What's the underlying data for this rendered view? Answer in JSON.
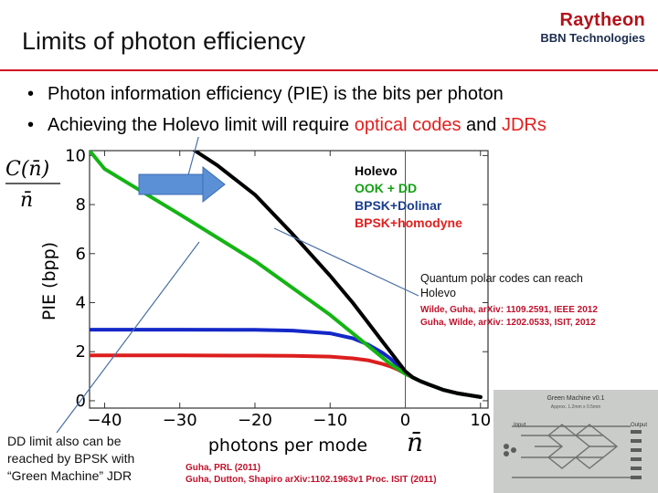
{
  "slide": {
    "title": "Limits of photon efficiency",
    "logo_brand": "Raytheon",
    "logo_sub": "BBN Technologies",
    "bullets": [
      {
        "text_before": "Photon information efficiency (PIE) is the bits per photon",
        "highlight": "",
        "text_mid": "",
        "highlight2": ""
      },
      {
        "text_before": "Achieving the Holevo limit will require ",
        "highlight": "optical codes",
        "text_mid": " and ",
        "highlight2": "JDRs"
      }
    ]
  },
  "legend": {
    "holevo": "Holevo",
    "ook_dd": "OOK + DD",
    "bpsk_dolinar": "BPSK+Dolinar",
    "bpsk_homodyne": "BPSK+homodyne"
  },
  "annotations": {
    "qpc_line1": "Quantum polar codes can reach",
    "qpc_line2": "Holevo",
    "qpc_ref1": "Wilde, Guha, arXiv: 1109.2591, IEEE 2012",
    "qpc_ref2": "Guha, Wilde, arXiv: 1202.0533, ISIT, 2012",
    "dd_line1": "DD limit also can be",
    "dd_line2": "reached by BPSK with",
    "dd_line3": "“Green Machine” JDR",
    "bottom_ref1": "Guha, PRL (2011)",
    "bottom_ref2": "Guha, Dutton, Shapiro arXiv:1102.1963v1  Proc. ISIT (2011)"
  },
  "chip": {
    "title": "Green Machine v0.1",
    "subtitle": "Approx. 1.2mm x 0.5mm",
    "input": "Input",
    "output": "Output"
  },
  "colors": {
    "holevo": "#000000",
    "ook_dd": "#14b414",
    "bpsk_dolinar": "#1428c8",
    "bpsk_homodyne": "#dc1e1e",
    "accent_red": "#d10f1f",
    "arrow_blue": "#5b8fd6"
  },
  "chart_data": {
    "type": "line",
    "title": "",
    "ylabel_math": "C(n̄) / n̄",
    "ylabel": "PIE (bpp)",
    "xlabel": "photons per mode",
    "xlabel_math": "n̄",
    "xlim": [
      -42,
      11
    ],
    "ylim": [
      -0.3,
      10.2
    ],
    "x_ticks": [
      -40,
      -30,
      -20,
      -10,
      0,
      10
    ],
    "x_tick_labels": [
      "−40",
      "−30",
      "−20",
      "−10",
      "0",
      "10"
    ],
    "y_ticks": [
      0,
      2,
      4,
      6,
      8,
      10
    ],
    "y_tick_labels": [
      "0",
      "2",
      "4",
      "6",
      "8",
      "10"
    ],
    "vline_x": 0,
    "grid": false,
    "series": [
      {
        "name": "BPSK+homodyne",
        "color": "#dc1e1e",
        "x": [
          -42,
          -30,
          -20,
          -15,
          -10,
          -7,
          -5,
          -3,
          -2,
          -1,
          0,
          1,
          2,
          3,
          5,
          7,
          10
        ],
        "y": [
          1.85,
          1.85,
          1.84,
          1.83,
          1.8,
          1.73,
          1.65,
          1.5,
          1.4,
          1.27,
          1.1,
          0.95,
          0.8,
          0.68,
          0.45,
          0.3,
          0.15
        ]
      },
      {
        "name": "BPSK+Dolinar",
        "color": "#1428c8",
        "x": [
          -42,
          -30,
          -20,
          -15,
          -10,
          -7,
          -5,
          -3,
          -2,
          -1,
          0,
          1,
          2,
          3,
          5,
          7,
          10
        ],
        "y": [
          2.9,
          2.9,
          2.89,
          2.86,
          2.75,
          2.55,
          2.3,
          1.95,
          1.72,
          1.45,
          1.15,
          0.95,
          0.8,
          0.68,
          0.45,
          0.3,
          0.15
        ]
      },
      {
        "name": "OOK + DD",
        "color": "#14b414",
        "x": [
          -42,
          -40,
          -30,
          -20,
          -15,
          -10,
          -7,
          -5,
          -3,
          -2,
          -1,
          0,
          1,
          2,
          3,
          5,
          7,
          10
        ],
        "y": [
          10.2,
          9.45,
          7.6,
          5.7,
          4.6,
          3.5,
          2.75,
          2.25,
          1.75,
          1.5,
          1.3,
          1.1,
          0.95,
          0.8,
          0.68,
          0.45,
          0.3,
          0.15
        ]
      },
      {
        "name": "Holevo",
        "color": "#000000",
        "x": [
          -28,
          -25,
          -20,
          -15,
          -10,
          -7,
          -5,
          -3,
          -2,
          -1,
          0,
          1,
          2,
          3,
          5,
          7,
          10
        ],
        "y": [
          10.2,
          9.6,
          8.4,
          6.8,
          5.1,
          4.0,
          3.2,
          2.4,
          2.0,
          1.6,
          1.2,
          0.95,
          0.8,
          0.68,
          0.45,
          0.3,
          0.15
        ]
      }
    ]
  }
}
